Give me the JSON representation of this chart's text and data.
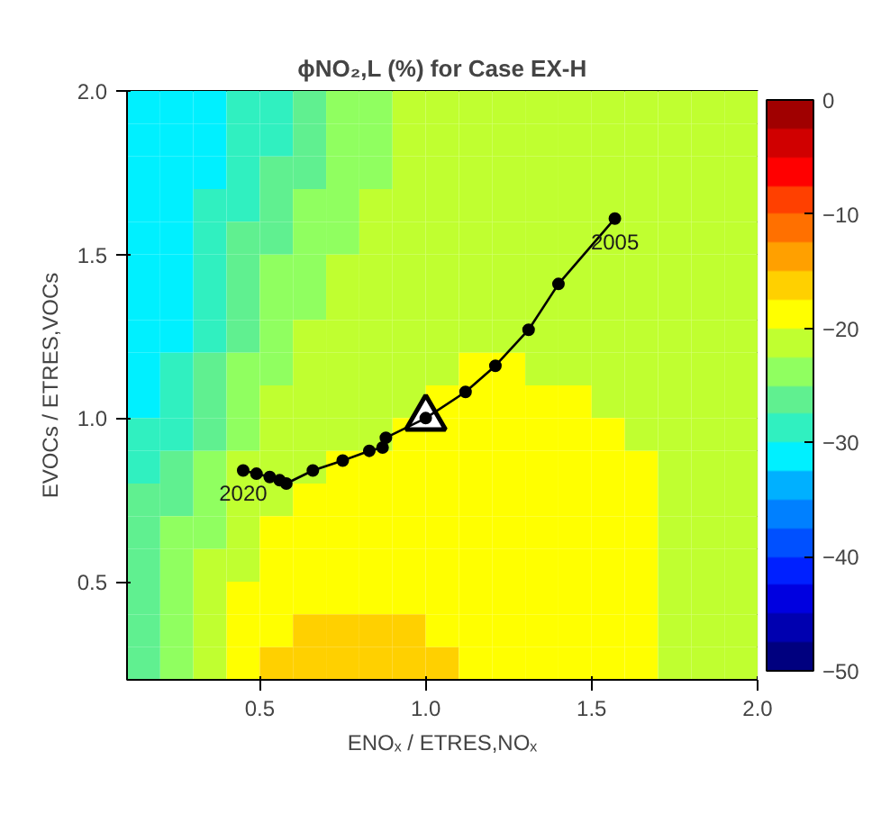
{
  "chart_data": {
    "type": "heatmap",
    "title": "ϕNO₂,L (%) for Case EX-H",
    "xlabel": "ENOₓ / ETRES,NOₓ",
    "ylabel": "EVOCs / ETRES,VOCs",
    "x": [
      0.15,
      0.25,
      0.35,
      0.45,
      0.55,
      0.65,
      0.75,
      0.85,
      0.95,
      1.05,
      1.15,
      1.25,
      1.35,
      1.45,
      1.55,
      1.65,
      1.75,
      1.85,
      1.95
    ],
    "y": [
      1.95,
      1.85,
      1.75,
      1.65,
      1.55,
      1.45,
      1.35,
      1.25,
      1.15,
      1.05,
      0.95,
      0.85,
      0.75,
      0.65,
      0.55,
      0.45,
      0.35,
      0.25
    ],
    "cells": [
      [
        -31,
        -31,
        -31,
        -28.5,
        -28.5,
        -26,
        -23.5,
        -23.5,
        -21,
        -21,
        -21,
        -21,
        -21,
        -21,
        -21,
        -21,
        -21,
        -21,
        -21
      ],
      [
        -31,
        -31,
        -31,
        -28.5,
        -28.5,
        -26,
        -23.5,
        -23.5,
        -21,
        -21,
        -21,
        -21,
        -21,
        -21,
        -21,
        -21,
        -21,
        -21,
        -21
      ],
      [
        -31,
        -31,
        -31,
        -28.5,
        -26,
        -26,
        -23.5,
        -23.5,
        -21,
        -21,
        -21,
        -21,
        -21,
        -21,
        -21,
        -21,
        -21,
        -21,
        -21
      ],
      [
        -31,
        -31,
        -28.5,
        -28.5,
        -26,
        -23.5,
        -23.5,
        -21,
        -21,
        -21,
        -21,
        -21,
        -21,
        -21,
        -21,
        -21,
        -21,
        -21,
        -21
      ],
      [
        -31,
        -31,
        -28.5,
        -26,
        -26,
        -23.5,
        -23.5,
        -21,
        -21,
        -21,
        -21,
        -21,
        -21,
        -21,
        -21,
        -21,
        -21,
        -21,
        -21
      ],
      [
        -31,
        -31,
        -28.5,
        -26,
        -23.5,
        -23.5,
        -21,
        -21,
        -21,
        -21,
        -21,
        -21,
        -21,
        -21,
        -21,
        -21,
        -21,
        -21,
        -21
      ],
      [
        -31,
        -31,
        -28.5,
        -26,
        -23.5,
        -23.5,
        -21,
        -21,
        -21,
        -21,
        -21,
        -21,
        -21,
        -21,
        -21,
        -21,
        -21,
        -21,
        -21
      ],
      [
        -31,
        -31,
        -28.5,
        -26,
        -23.5,
        -21,
        -21,
        -21,
        -21,
        -21,
        -21,
        -21,
        -21,
        -21,
        -21,
        -21,
        -21,
        -21,
        -21
      ],
      [
        -31,
        -28.5,
        -26,
        -23.5,
        -23.5,
        -21,
        -21,
        -21,
        -21,
        -21,
        -18.5,
        -18.5,
        -21,
        -21,
        -21,
        -21,
        -21,
        -21,
        -21
      ],
      [
        -31,
        -28.5,
        -26,
        -23.5,
        -21,
        -21,
        -21,
        -21,
        -21,
        -18.5,
        -18.5,
        -18.5,
        -18.5,
        -18.5,
        -21,
        -21,
        -21,
        -21,
        -21
      ],
      [
        -28.5,
        -28.5,
        -26,
        -23.5,
        -21,
        -21,
        -21,
        -21,
        -18.5,
        -18.5,
        -18.5,
        -18.5,
        -18.5,
        -18.5,
        -18.5,
        -21,
        -21,
        -21,
        -21
      ],
      [
        -28.5,
        -26,
        -23.5,
        -21,
        -21,
        -21,
        -18.5,
        -18.5,
        -18.5,
        -18.5,
        -18.5,
        -18.5,
        -18.5,
        -18.5,
        -18.5,
        -18.5,
        -21,
        -21,
        -21
      ],
      [
        -26,
        -26,
        -23.5,
        -21,
        -21,
        -18.5,
        -18.5,
        -18.5,
        -18.5,
        -18.5,
        -18.5,
        -18.5,
        -18.5,
        -18.5,
        -18.5,
        -18.5,
        -21,
        -21,
        -21
      ],
      [
        -26,
        -23.5,
        -23.5,
        -21,
        -18.5,
        -18.5,
        -18.5,
        -18.5,
        -18.5,
        -18.5,
        -18.5,
        -18.5,
        -18.5,
        -18.5,
        -18.5,
        -18.5,
        -21,
        -21,
        -21
      ],
      [
        -26,
        -23.5,
        -21,
        -21,
        -18.5,
        -18.5,
        -18.5,
        -18.5,
        -18.5,
        -18.5,
        -18.5,
        -18.5,
        -18.5,
        -18.5,
        -18.5,
        -18.5,
        -21,
        -21,
        -21
      ],
      [
        -26,
        -23.5,
        -21,
        -18.5,
        -18.5,
        -18.5,
        -18.5,
        -18.5,
        -18.5,
        -18.5,
        -18.5,
        -18.5,
        -18.5,
        -18.5,
        -18.5,
        -18.5,
        -21,
        -21,
        -21
      ],
      [
        -26,
        -23.5,
        -21,
        -18.5,
        -18.5,
        -16,
        -16,
        -16,
        -16,
        -18.5,
        -18.5,
        -18.5,
        -18.5,
        -18.5,
        -18.5,
        -18.5,
        -21,
        -21,
        -21
      ],
      [
        -26,
        -23.5,
        -21,
        -18.5,
        -16,
        -16,
        -16,
        -16,
        -16,
        -16,
        -18.5,
        -18.5,
        -18.5,
        -18.5,
        -18.5,
        -18.5,
        -21,
        -21,
        -21
      ]
    ],
    "colors": [
      "#00007f",
      "#0000b0",
      "#0000e0",
      "#0020ff",
      "#0050ff",
      "#0080ff",
      "#00b0ff",
      "#00f0ff",
      "#30f0c0",
      "#60f090",
      "#90ff60",
      "#c0ff30",
      "#ffff00",
      "#ffd000",
      "#ffa000",
      "#ff7000",
      "#ff4000",
      "#ff0000",
      "#d00000",
      "#a00000"
    ],
    "clim": [
      -50,
      0
    ],
    "cticks": [
      -50,
      -40,
      -30,
      -20,
      -10,
      0
    ],
    "xlim": [
      0.1,
      2.0
    ],
    "ylim": [
      0.2,
      2.0
    ],
    "xticks": [
      0.5,
      {
        "value": 1,
        "label": "1.0"
      },
      1.5,
      {
        "value": 2,
        "label": "2.0"
      }
    ],
    "yticks": [
      0.5,
      {
        "value": 1,
        "label": "1.0"
      },
      1.5,
      {
        "value": 2,
        "label": "2.0"
      }
    ],
    "series": [
      {
        "type": "line",
        "color": "#000000",
        "marker": "circle",
        "x": [
          1.57,
          1.4,
          1.31,
          1.21,
          1.12,
          1.0,
          0.88,
          0.87,
          0.83,
          0.75,
          0.66,
          0.58,
          0.56,
          0.53,
          0.49,
          0.45
        ],
        "values": [
          1.61,
          1.41,
          1.27,
          1.16,
          1.08,
          1.0,
          0.94,
          0.91,
          0.9,
          0.87,
          0.84,
          0.8,
          0.81,
          0.82,
          0.83,
          0.84
        ]
      },
      {
        "type": "scatter",
        "color": "#000000",
        "marker": "triangle",
        "x": [
          1.0
        ],
        "values": [
          1.0
        ]
      }
    ],
    "annotations": [
      {
        "text": "2005",
        "x": 1.57,
        "y": 1.61
      },
      {
        "text": "2020",
        "x": 0.45,
        "y": 0.84
      }
    ]
  }
}
